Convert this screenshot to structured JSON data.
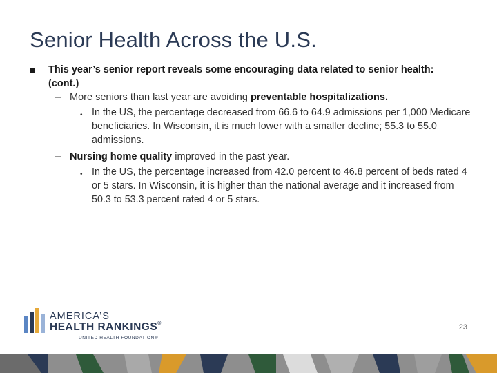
{
  "slide": {
    "title": "Senior Health Across the U.S.",
    "bullet": "This year’s senior report reveals some encouraging data related to senior health: (cont.)",
    "items": [
      {
        "dash": "–",
        "prefix": "More seniors than last year are avoiding ",
        "bold": "preventable hospitalizations.",
        "suffix": "",
        "sub": "In the US, the percentage decreased from 66.6 to 64.9 admissions per 1,000 Medicare beneficiaries. In Wisconsin, it is much lower with a smaller decline; 55.3 to 55.0 admissions."
      },
      {
        "dash": "–",
        "prefix": "",
        "bold": "Nursing home quality",
        "suffix": " improved in the past year.",
        "sub": "In the US, the percentage increased from 42.0 percent to 46.8 percent of beds rated 4 or 5 stars. In Wisconsin, it is higher than the national average and it increased from 50.3 to 53.3 percent rated 4 or 5 stars."
      }
    ],
    "sub_bullet": "•",
    "page_number": "23"
  },
  "logo": {
    "line1": "AMERICA’S",
    "line2": "HEALTH RANKINGS",
    "registered": "®",
    "line3": "UNITED HEALTH FOUNDATION®"
  },
  "colors": {
    "title": "#2b3a55",
    "text": "#333333",
    "logo_navy": "#2b3a55",
    "logo_gold": "#e6a93a",
    "logo_blue": "#5b86c4",
    "band_gray": "#8e8e8e",
    "band_green": "#2f5a3a",
    "band_navy": "#2b3a55",
    "band_light": "#dcdcdc",
    "band_gold": "#d99a2b"
  }
}
